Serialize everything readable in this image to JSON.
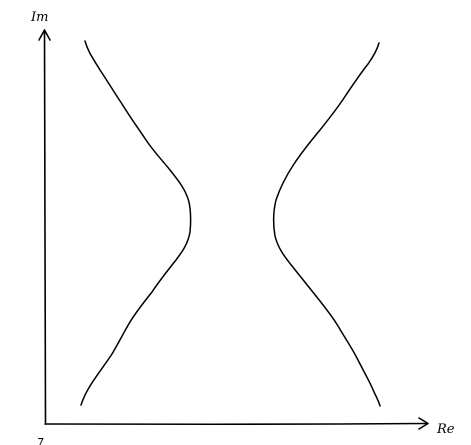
{
  "diagram": {
    "axes": {
      "vertical_label": "Im",
      "horizontal_label": "Re",
      "origin_mark": "⁊"
    },
    "ink_color": "#000000",
    "curves": [
      {
        "name": "left-branch"
      },
      {
        "name": "right-branch"
      }
    ]
  }
}
